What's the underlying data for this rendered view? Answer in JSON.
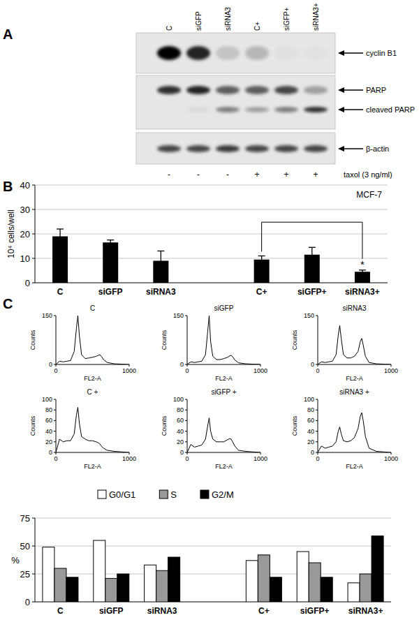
{
  "panels": [
    "A",
    "B",
    "C"
  ],
  "blot": {
    "lanes": [
      "C",
      "siGFP",
      "siRNA3",
      "C+",
      "siGFP+",
      "siRNA3+"
    ],
    "treatment": [
      "-",
      "-",
      "-",
      "+",
      "+",
      "+"
    ],
    "treatment_label": "taxol (3 ng/ml)",
    "bands": [
      {
        "name": "cyclin B1",
        "intensity": [
          1,
          0.85,
          0.15,
          0.2,
          0.03,
          0.02
        ]
      },
      {
        "name": "PARP",
        "intensity": [
          0.8,
          0.85,
          0.6,
          0.6,
          0.7,
          0.3
        ]
      },
      {
        "name": "cleaved PARP",
        "intensity": [
          0,
          0.05,
          0.45,
          0.3,
          0.45,
          0.8
        ]
      },
      {
        "name": "β-actin",
        "intensity": [
          0.7,
          0.7,
          0.75,
          0.7,
          0.7,
          0.7
        ]
      }
    ]
  },
  "chart_data": [
    {
      "type": "bar",
      "title": "MCF-7",
      "ylabel": "10⁴ cells/well",
      "categories": [
        "C",
        "siGFP",
        "siRNA3",
        null,
        "C+",
        "siGFP+",
        "siRNA3+"
      ],
      "values": [
        19,
        16.5,
        9,
        null,
        9.5,
        11.5,
        4.5
      ],
      "errors": [
        3,
        1,
        4,
        null,
        1.5,
        3,
        0.7
      ],
      "color": "#000000",
      "ylim": [
        0,
        40
      ],
      "yticks": [
        0,
        10,
        20,
        30,
        40
      ],
      "grid": true,
      "annotations": [
        {
          "text": "*",
          "from": 4,
          "to": 6
        }
      ]
    },
    {
      "type": "line",
      "title": "C",
      "xlabel": "FL2-A",
      "ylabel": "Counts",
      "x": [
        0,
        50,
        100,
        150,
        200,
        250,
        280,
        300,
        320,
        350,
        400,
        450,
        500,
        550,
        580,
        600,
        620,
        650,
        700,
        800,
        900,
        1000
      ],
      "values": [
        0,
        10,
        8,
        10,
        12,
        40,
        110,
        150,
        90,
        30,
        18,
        20,
        22,
        25,
        28,
        30,
        25,
        15,
        6,
        2,
        1,
        0
      ],
      "color": "#000000",
      "xlim": [
        0,
        1000
      ],
      "xticks": [
        0,
        1000
      ],
      "ylim": [
        0,
        150
      ],
      "yticks": [
        0,
        150
      ]
    },
    {
      "type": "line",
      "title": "siGFP",
      "xlabel": "FL2-A",
      "ylabel": "Counts",
      "x": [
        0,
        50,
        100,
        150,
        200,
        250,
        280,
        300,
        320,
        350,
        400,
        450,
        500,
        550,
        580,
        600,
        620,
        650,
        700,
        800,
        900,
        1000
      ],
      "values": [
        0,
        8,
        6,
        8,
        10,
        30,
        100,
        150,
        70,
        25,
        15,
        15,
        18,
        22,
        26,
        28,
        24,
        14,
        5,
        2,
        1,
        0
      ],
      "color": "#000000",
      "xlim": [
        0,
        1000
      ],
      "xticks": [
        0,
        1000
      ],
      "ylim": [
        0,
        150
      ],
      "yticks": [
        0,
        150
      ]
    },
    {
      "type": "line",
      "title": "siRNA3",
      "xlabel": "FL2-A",
      "ylabel": "Counts",
      "x": [
        0,
        50,
        100,
        150,
        200,
        250,
        280,
        300,
        320,
        350,
        400,
        450,
        500,
        550,
        580,
        600,
        620,
        650,
        700,
        800,
        900,
        1000
      ],
      "values": [
        0,
        8,
        6,
        8,
        10,
        30,
        90,
        120,
        80,
        30,
        20,
        20,
        25,
        40,
        70,
        80,
        60,
        25,
        6,
        2,
        1,
        0
      ],
      "color": "#000000",
      "xlim": [
        0,
        1000
      ],
      "xticks": [
        0,
        1000
      ],
      "ylim": [
        0,
        150
      ],
      "yticks": [
        0,
        150
      ]
    },
    {
      "type": "line",
      "title": "C +",
      "xlabel": "FL2-A",
      "ylabel": "Counts",
      "x": [
        0,
        50,
        100,
        150,
        200,
        250,
        280,
        300,
        320,
        350,
        400,
        450,
        500,
        550,
        580,
        600,
        620,
        650,
        700,
        800,
        900,
        1000
      ],
      "values": [
        0,
        25,
        20,
        22,
        22,
        35,
        70,
        85,
        55,
        30,
        25,
        22,
        22,
        20,
        18,
        16,
        12,
        8,
        4,
        2,
        1,
        0
      ],
      "color": "#000000",
      "xlim": [
        0,
        1000
      ],
      "xticks": [
        0,
        1000
      ],
      "ylim": [
        0,
        100
      ],
      "yticks": [
        0,
        20,
        40,
        60,
        80,
        100
      ]
    },
    {
      "type": "line",
      "title": "siGFP +",
      "xlabel": "FL2-A",
      "ylabel": "Counts",
      "x": [
        0,
        50,
        100,
        150,
        200,
        250,
        280,
        300,
        320,
        350,
        400,
        450,
        500,
        550,
        580,
        600,
        620,
        650,
        700,
        800,
        900,
        1000
      ],
      "values": [
        0,
        15,
        10,
        12,
        14,
        25,
        50,
        65,
        40,
        25,
        20,
        20,
        20,
        24,
        26,
        25,
        20,
        12,
        4,
        2,
        1,
        0
      ],
      "color": "#000000",
      "xlim": [
        0,
        1000
      ],
      "xticks": [
        0,
        1000
      ],
      "ylim": [
        0,
        100
      ],
      "yticks": [
        0,
        20,
        40,
        60,
        80,
        100
      ]
    },
    {
      "type": "line",
      "title": "siRNA3 +",
      "xlabel": "FL2-A",
      "ylabel": "Counts",
      "x": [
        0,
        50,
        100,
        150,
        200,
        250,
        280,
        300,
        320,
        350,
        400,
        450,
        500,
        550,
        580,
        600,
        620,
        650,
        700,
        800,
        900,
        1000
      ],
      "values": [
        0,
        12,
        8,
        10,
        12,
        20,
        40,
        48,
        35,
        22,
        20,
        22,
        28,
        45,
        68,
        75,
        60,
        30,
        8,
        2,
        1,
        0
      ],
      "color": "#000000",
      "xlim": [
        0,
        1000
      ],
      "xticks": [
        0,
        1000
      ],
      "ylim": [
        0,
        100
      ],
      "yticks": [
        0,
        20,
        40,
        60,
        80,
        100
      ]
    },
    {
      "type": "bar",
      "ylabel": "%",
      "categories": [
        "C",
        "siGFP",
        "siRNA3",
        null,
        "C+",
        "siGFP+",
        "siRNA3+"
      ],
      "series": [
        {
          "name": "G0/G1",
          "color": "#ffffff",
          "values": [
            49,
            55,
            33,
            null,
            37,
            45,
            17
          ]
        },
        {
          "name": "S",
          "color": "#999999",
          "values": [
            30,
            21,
            28,
            null,
            42,
            35,
            25
          ]
        },
        {
          "name": "G2/M",
          "color": "#000000",
          "values": [
            22,
            25,
            40,
            null,
            22,
            22,
            59
          ]
        }
      ],
      "ylim": [
        0,
        75
      ],
      "yticks": [
        0,
        25,
        50,
        75
      ],
      "grid": true,
      "legend": "top"
    }
  ]
}
